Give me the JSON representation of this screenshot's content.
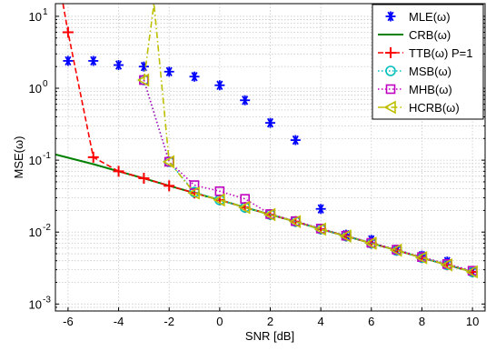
{
  "chart_data": {
    "type": "line",
    "title": "",
    "xlabel": "SNR [dB]",
    "ylabel": "MSE(ω)",
    "xlim": [
      -6.5,
      10.5
    ],
    "ylim": [
      0.0008,
      15
    ],
    "y_scale": "log",
    "grid": true,
    "legend_position": "top-right",
    "x_ticks": [
      -6,
      -4,
      -2,
      0,
      2,
      4,
      6,
      8,
      10
    ],
    "x_tick_labels": [
      "-6",
      "-4",
      "-2",
      "0",
      "2",
      "4",
      "6",
      "8",
      "10"
    ],
    "y_ticks": [
      0.001,
      0.01,
      0.1,
      1,
      10
    ],
    "y_tick_labels": [
      {
        "base": "10",
        "exp": "-3"
      },
      {
        "base": "10",
        "exp": "-2"
      },
      {
        "base": "10",
        "exp": "-1"
      },
      {
        "base": "10",
        "exp": "0"
      },
      {
        "base": "10",
        "exp": "1"
      }
    ],
    "series": [
      {
        "name": "MLE(ω)",
        "color": "#0000ff",
        "marker": "asterisk",
        "line": "none",
        "x": [
          -6,
          -5,
          -4,
          -3,
          -2,
          -1,
          0,
          1,
          2,
          3,
          4,
          5,
          6,
          7,
          8,
          9,
          10
        ],
        "y": [
          2.4,
          2.4,
          2.1,
          2.0,
          1.7,
          1.45,
          1.1,
          0.68,
          0.33,
          0.19,
          0.021,
          0.0092,
          0.0078,
          0.0055,
          0.0047,
          0.0039,
          0.0028
        ]
      },
      {
        "name": "CRB(ω)",
        "color": "#008000",
        "marker": "none",
        "line": "solid",
        "x": [
          -6.5,
          -5,
          -4,
          -3,
          -2,
          -1,
          0,
          1,
          2,
          3,
          4,
          5,
          6,
          7,
          8,
          9,
          10
        ],
        "y": [
          0.12,
          0.088,
          0.07,
          0.056,
          0.044,
          0.035,
          0.028,
          0.022,
          0.0175,
          0.014,
          0.011,
          0.0088,
          0.007,
          0.0056,
          0.0044,
          0.0035,
          0.0028
        ]
      },
      {
        "name": "TTB(ω) P=1",
        "color": "#ff0000",
        "marker": "plus",
        "line": "dashed",
        "x": [
          -6.2,
          -6,
          -5,
          -4,
          -3,
          -2,
          -1,
          0,
          1,
          2,
          3,
          4,
          5,
          6,
          7,
          8,
          9,
          10
        ],
        "y": [
          15,
          6.0,
          0.11,
          0.07,
          0.056,
          0.044,
          0.035,
          0.028,
          0.022,
          0.0175,
          0.014,
          0.011,
          0.0088,
          0.007,
          0.0056,
          0.0044,
          0.0035,
          0.0028
        ]
      },
      {
        "name": "MSB(ω)",
        "color": "#00bfbf",
        "marker": "circle",
        "line": "dotted",
        "x": [
          -3,
          -2,
          -1,
          0,
          1,
          2,
          3,
          4,
          5,
          6,
          7,
          8,
          9,
          10
        ],
        "y": [
          1.3,
          0.095,
          0.036,
          0.028,
          0.022,
          0.0175,
          0.014,
          0.011,
          0.0088,
          0.007,
          0.0056,
          0.0044,
          0.0035,
          0.0028
        ]
      },
      {
        "name": "MHB(ω)",
        "color": "#bf00bf",
        "marker": "square",
        "line": "dotted",
        "x": [
          -3,
          -2,
          -1,
          0,
          1,
          2,
          3,
          4,
          5,
          6,
          7,
          8,
          9,
          10
        ],
        "y": [
          1.3,
          0.095,
          0.045,
          0.037,
          0.029,
          0.0178,
          0.0142,
          0.0112,
          0.0089,
          0.0071,
          0.0057,
          0.0045,
          0.0036,
          0.0029
        ]
      },
      {
        "name": "HCRB(ω)",
        "color": "#bfbf00",
        "marker": "triangle-left",
        "line": "dashdot",
        "x": [
          -2.6,
          -3,
          -2,
          -1,
          0,
          1,
          2,
          3,
          4,
          5,
          6,
          7,
          8,
          9,
          10
        ],
        "y": [
          15,
          1.3,
          0.095,
          0.035,
          0.028,
          0.022,
          0.0175,
          0.014,
          0.011,
          0.0088,
          0.007,
          0.0056,
          0.0044,
          0.0035,
          0.0028
        ]
      }
    ]
  }
}
